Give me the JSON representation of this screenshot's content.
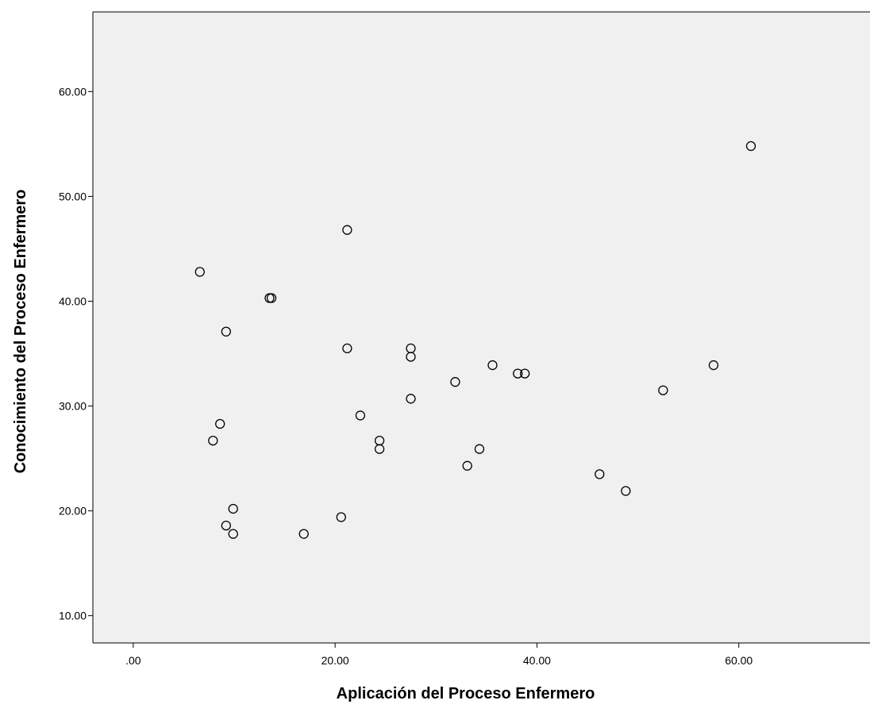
{
  "chart_data": {
    "type": "scatter",
    "title": "",
    "xlabel": "Aplicación del Proceso Enfermero",
    "ylabel": "Conocimiento del Proceso Enfermero",
    "xlim": [
      -4,
      73
    ],
    "ylim": [
      7.4,
      67.6
    ],
    "x_ticks": [
      0,
      20,
      40,
      60
    ],
    "x_tick_labels": [
      ".00",
      "20.00",
      "40.00",
      "60.00"
    ],
    "y_ticks": [
      10,
      20,
      30,
      40,
      50,
      60
    ],
    "y_tick_labels": [
      "10.00",
      "20.00",
      "30.00",
      "40.00",
      "50.00",
      "60.00"
    ],
    "grid": false,
    "colors": {
      "plot_background": "#f0f0f0",
      "marker_stroke": "#000000",
      "axis": "#000000"
    },
    "points": [
      {
        "x": 61.2,
        "y": 54.8
      },
      {
        "x": 21.2,
        "y": 46.8
      },
      {
        "x": 6.6,
        "y": 42.8
      },
      {
        "x": 13.5,
        "y": 40.3
      },
      {
        "x": 13.7,
        "y": 40.3
      },
      {
        "x": 9.2,
        "y": 37.1
      },
      {
        "x": 21.2,
        "y": 35.5
      },
      {
        "x": 27.5,
        "y": 35.5
      },
      {
        "x": 27.5,
        "y": 34.7
      },
      {
        "x": 35.6,
        "y": 33.9
      },
      {
        "x": 38.1,
        "y": 33.1
      },
      {
        "x": 38.8,
        "y": 33.1
      },
      {
        "x": 57.5,
        "y": 33.9
      },
      {
        "x": 31.9,
        "y": 32.3
      },
      {
        "x": 52.5,
        "y": 31.5
      },
      {
        "x": 27.5,
        "y": 30.7
      },
      {
        "x": 22.5,
        "y": 29.1
      },
      {
        "x": 8.6,
        "y": 28.3
      },
      {
        "x": 7.9,
        "y": 26.7
      },
      {
        "x": 24.4,
        "y": 26.7
      },
      {
        "x": 24.4,
        "y": 25.9
      },
      {
        "x": 34.3,
        "y": 25.9
      },
      {
        "x": 33.1,
        "y": 24.3
      },
      {
        "x": 46.2,
        "y": 23.5
      },
      {
        "x": 48.8,
        "y": 21.9
      },
      {
        "x": 9.9,
        "y": 20.2
      },
      {
        "x": 20.6,
        "y": 19.4
      },
      {
        "x": 9.2,
        "y": 18.6
      },
      {
        "x": 9.9,
        "y": 17.8
      },
      {
        "x": 16.9,
        "y": 17.8
      }
    ]
  }
}
